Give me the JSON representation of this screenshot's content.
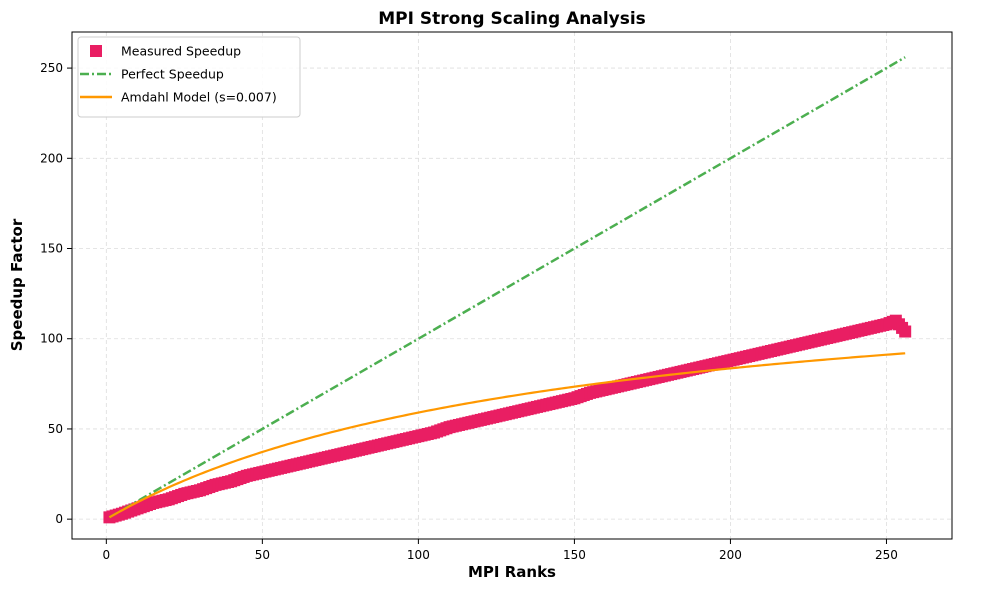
{
  "chart_data": {
    "type": "scatter",
    "title": "MPI Strong Scaling Analysis",
    "xlabel": "MPI Ranks",
    "ylabel": "Speedup Factor",
    "xlim": [
      -11,
      271
    ],
    "ylim": [
      -11,
      270
    ],
    "xticks": [
      0,
      50,
      100,
      150,
      200,
      250
    ],
    "yticks": [
      0,
      50,
      100,
      150,
      200,
      250
    ],
    "grid": true,
    "legend_position": "top-left",
    "colors": {
      "measured": "#e91e63",
      "perfect": "#4caf50",
      "amdahl": "#ff9800"
    },
    "series": [
      {
        "name": "Measured Speedup",
        "kind": "markers",
        "marker": "square",
        "x": [
          1,
          5,
          10,
          15,
          20,
          25,
          30,
          35,
          40,
          45,
          50,
          55,
          60,
          65,
          70,
          75,
          80,
          85,
          90,
          95,
          100,
          105,
          110,
          115,
          120,
          125,
          130,
          135,
          140,
          145,
          150,
          155,
          160,
          165,
          170,
          175,
          180,
          185,
          190,
          195,
          200,
          205,
          210,
          215,
          220,
          225,
          230,
          235,
          240,
          245,
          250,
          253,
          256
        ],
        "y": [
          1,
          3,
          6,
          9,
          11,
          14,
          16,
          19,
          21,
          24,
          26,
          28,
          30,
          32,
          34,
          36,
          38,
          40,
          42,
          44,
          46,
          48,
          51,
          53,
          55,
          57,
          59,
          61,
          63,
          65,
          67,
          70,
          72,
          74,
          76,
          78,
          80,
          82,
          84,
          86,
          88,
          90,
          92,
          94,
          96,
          98,
          100,
          102,
          104,
          106,
          108,
          110,
          104
        ]
      },
      {
        "name": "Perfect Speedup",
        "kind": "line",
        "style": "dashdot",
        "x": [
          1,
          256
        ],
        "y": [
          1,
          256
        ]
      },
      {
        "name": "Amdahl Model (s=0.007)",
        "kind": "line",
        "style": "solid",
        "model": "amdahl",
        "s": 0.007,
        "x_range": [
          1,
          256
        ]
      }
    ]
  }
}
